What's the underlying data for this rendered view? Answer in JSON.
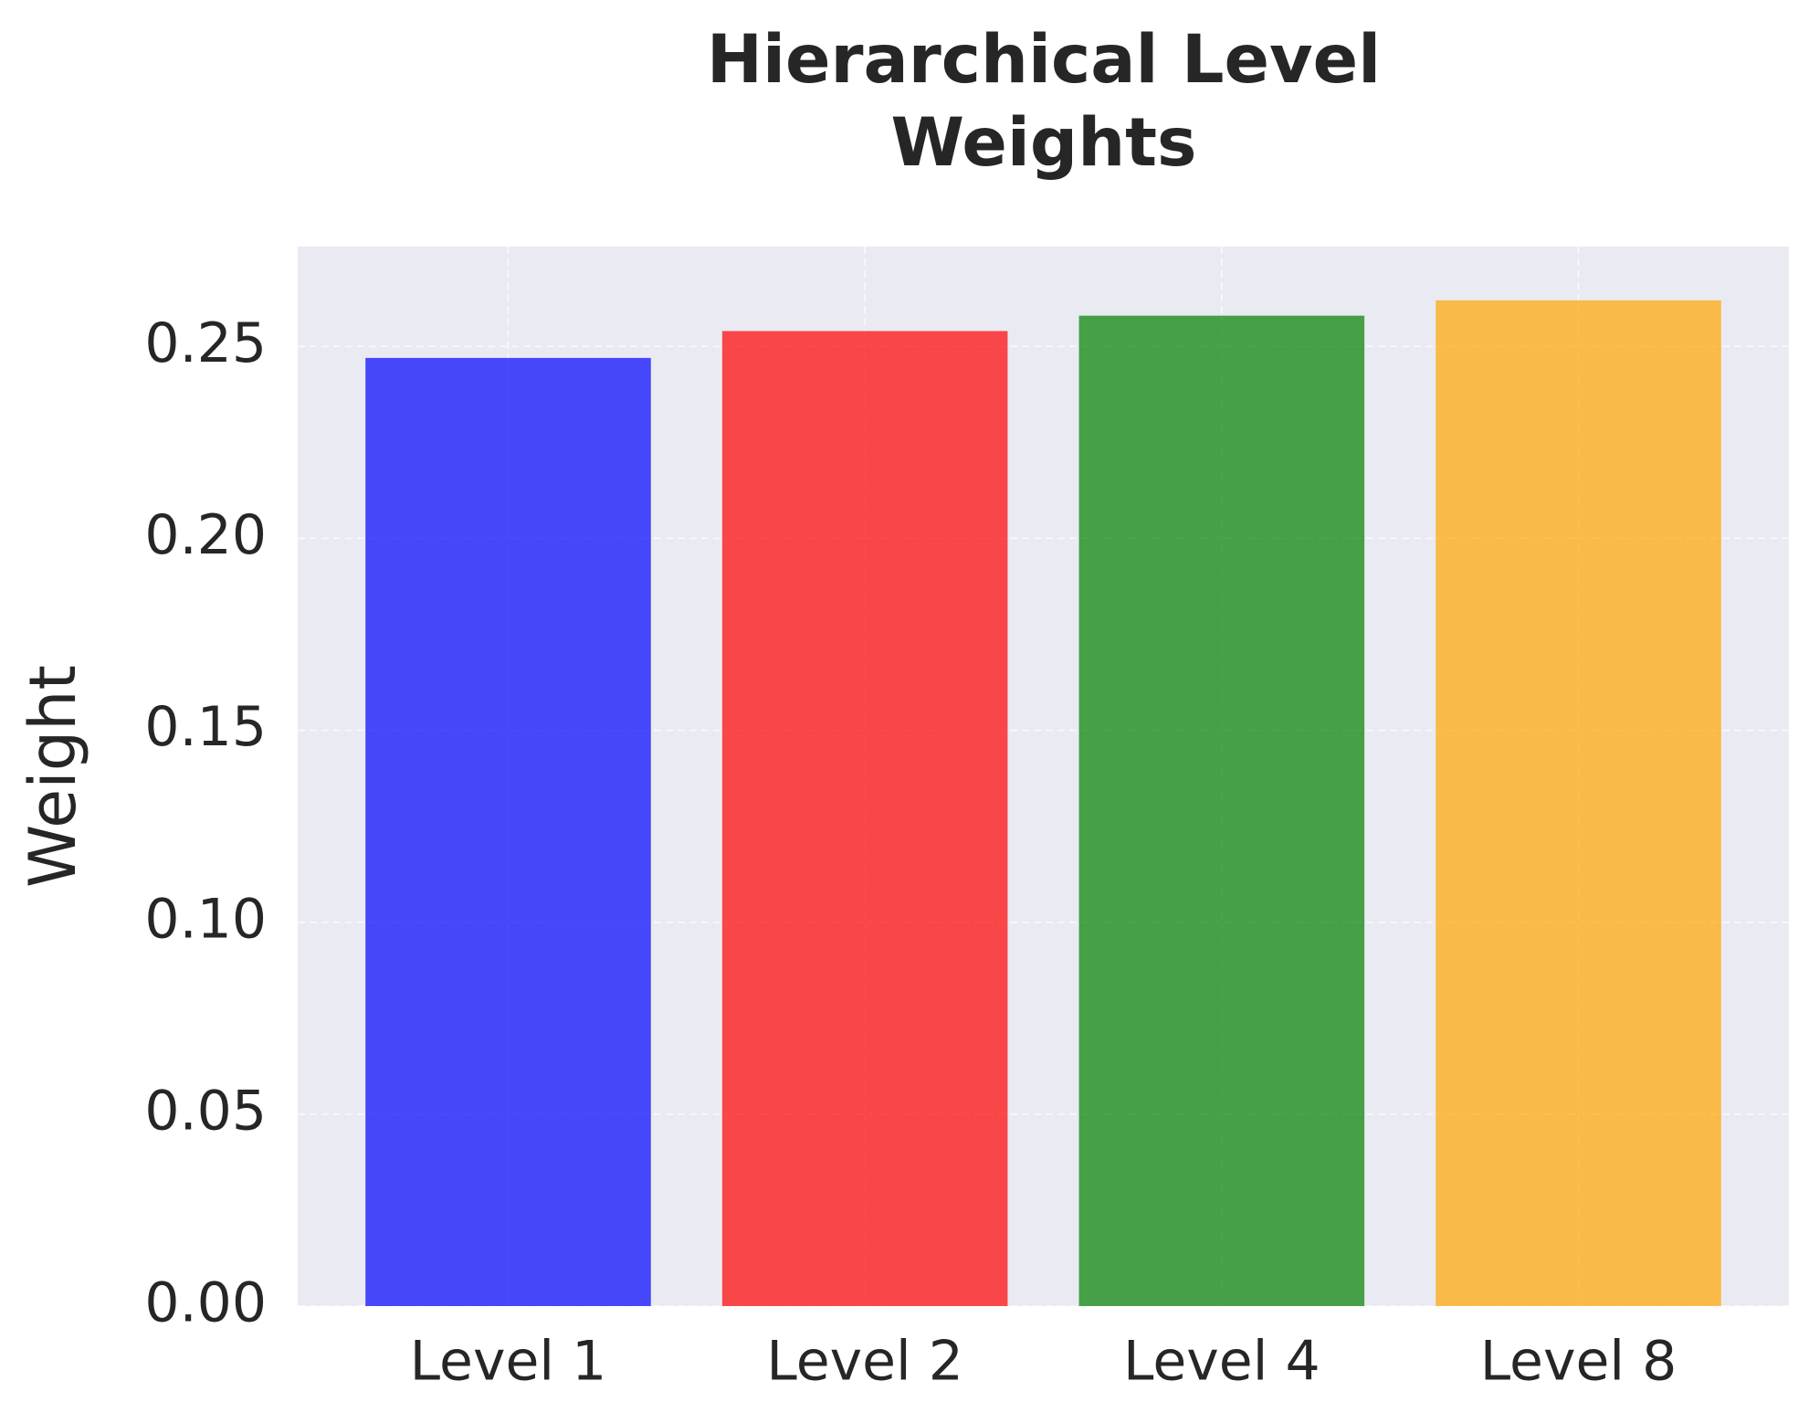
{
  "chart_data": {
    "type": "bar",
    "title": "Hierarchical Level\nWeights",
    "ylabel": "Weight",
    "categories": [
      "Level 1",
      "Level 2",
      "Level 4",
      "Level 8"
    ],
    "values": [
      0.247,
      0.254,
      0.258,
      0.262
    ],
    "colors": [
      "#0000ff",
      "#ff0000",
      "#008000",
      "#ffa500"
    ],
    "ylim": [
      0,
      0.276
    ],
    "yticks": [
      {
        "value": 0,
        "label": "0.00"
      },
      0.05,
      {
        "value": 0.1,
        "label": "0.10"
      },
      0.15,
      {
        "value": 0.2,
        "label": "0.20"
      },
      0.25
    ],
    "grid": true
  }
}
